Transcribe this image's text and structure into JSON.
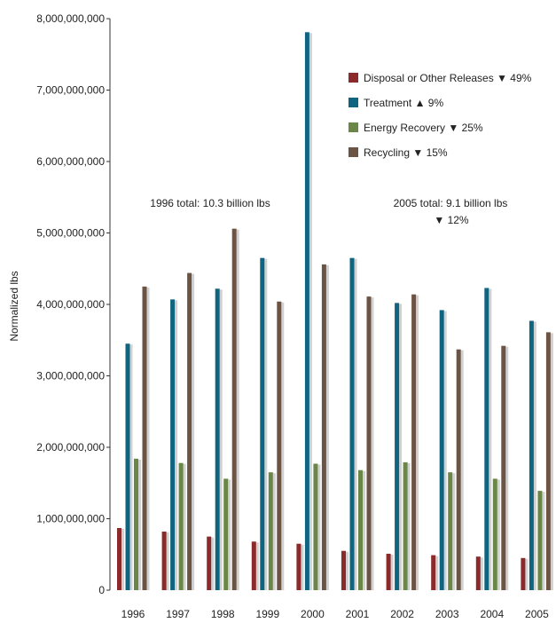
{
  "chart_data": {
    "type": "bar",
    "title": "",
    "xlabel": "",
    "ylabel": "Normalized lbs",
    "ylim": [
      0,
      8000000000
    ],
    "yticks": [
      0,
      1000000000,
      2000000000,
      3000000000,
      4000000000,
      5000000000,
      6000000000,
      7000000000,
      8000000000
    ],
    "ytick_labels": [
      "0",
      "1,000,000,000",
      "2,000,000,000",
      "3,000,000,000",
      "4,000,000,000",
      "5,000,000,000",
      "6,000,000,000",
      "7,000,000,000",
      "8,000,000,000"
    ],
    "grid": false,
    "legend_position": "top-right",
    "categories": [
      "1996",
      "1997",
      "1998",
      "1999",
      "2000",
      "2001",
      "2002",
      "2003",
      "2004",
      "2005"
    ],
    "series": [
      {
        "name": "Disposal or Other Releases",
        "change_arrow": "▼",
        "change": "49%",
        "color": "#8b2a2a",
        "values": [
          870000000,
          820000000,
          750000000,
          680000000,
          650000000,
          550000000,
          510000000,
          490000000,
          470000000,
          450000000
        ]
      },
      {
        "name": "Treatment",
        "change_arrow": "▲",
        "change": "9%",
        "color": "#0f6480",
        "values": [
          3450000000,
          4070000000,
          4220000000,
          4650000000,
          7810000000,
          4650000000,
          4020000000,
          3920000000,
          4230000000,
          3770000000
        ]
      },
      {
        "name": "Energy Recovery",
        "change_arrow": "▼",
        "change": "25%",
        "color": "#6b8748",
        "values": [
          1840000000,
          1780000000,
          1560000000,
          1650000000,
          1770000000,
          1680000000,
          1790000000,
          1650000000,
          1560000000,
          1390000000
        ]
      },
      {
        "name": "Recycling",
        "change_arrow": "▼",
        "change": "15%",
        "color": "#6b5444",
        "values": [
          4250000000,
          4440000000,
          5060000000,
          4040000000,
          4560000000,
          4110000000,
          4140000000,
          3370000000,
          3420000000,
          3610000000
        ]
      }
    ],
    "annotations": [
      {
        "text": "1996 total: 10.3 billion lbs"
      },
      {
        "text": "2005 total: 9.1 billion lbs"
      },
      {
        "text": "▼ 12%"
      }
    ]
  }
}
